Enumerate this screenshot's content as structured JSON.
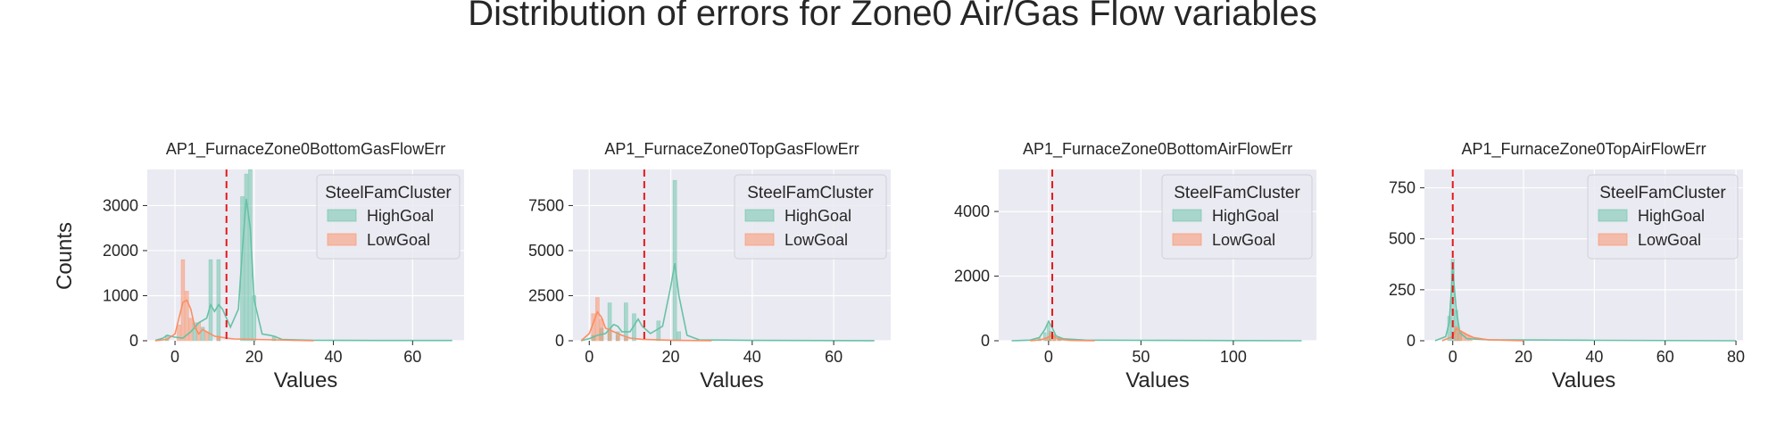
{
  "suptitle": "Distribution of errors for Zone0 Air/Gas Flow variables",
  "shared_ylabel": "Counts",
  "colors": {
    "axes_background": "#eaeaf2",
    "grid": "#ffffff",
    "HighGoal": "#66c2a5",
    "LowGoal": "#fc8d62",
    "threshold_line": "#e41a1c"
  },
  "chart_data": [
    {
      "type": "histogram",
      "title": "AP1_FurnaceZone0BottomGasFlowErr",
      "xlabel": "Values",
      "ylabel": "Counts",
      "xlim": [
        -7,
        73
      ],
      "ylim": [
        0,
        3800
      ],
      "xticks": [
        0,
        20,
        40,
        60
      ],
      "yticks": [
        0,
        1000,
        2000,
        3000
      ],
      "threshold": 13,
      "legend": {
        "title": "SteelFamCluster",
        "entries": [
          "HighGoal",
          "LowGoal"
        ],
        "position": "top-right"
      },
      "grid": true,
      "kde": true,
      "series": [
        {
          "name": "HighGoal",
          "bins": [
            {
              "x": -2,
              "y": 120
            },
            {
              "x": 5,
              "y": 400
            },
            {
              "x": 7,
              "y": 300
            },
            {
              "x": 9,
              "y": 1800
            },
            {
              "x": 11,
              "y": 1800
            },
            {
              "x": 17,
              "y": 3200
            },
            {
              "x": 18,
              "y": 3700
            },
            {
              "x": 19,
              "y": 3800
            },
            {
              "x": 20,
              "y": 1000
            },
            {
              "x": 25,
              "y": 100
            },
            {
              "x": 30,
              "y": 20
            }
          ]
        },
        {
          "name": "LowGoal",
          "bins": [
            {
              "x": 1,
              "y": 350
            },
            {
              "x": 2,
              "y": 1800
            },
            {
              "x": 3,
              "y": 1100
            },
            {
              "x": 4,
              "y": 500
            },
            {
              "x": 6,
              "y": 400
            },
            {
              "x": 8,
              "y": 200
            },
            {
              "x": 11,
              "y": 100
            }
          ]
        }
      ],
      "kde_curves": [
        {
          "name": "HighGoal",
          "points": [
            [
              -5,
              5
            ],
            [
              -3,
              60
            ],
            [
              -2,
              120
            ],
            [
              0,
              80
            ],
            [
              2,
              60
            ],
            [
              4,
              200
            ],
            [
              6,
              400
            ],
            [
              8,
              500
            ],
            [
              9,
              800
            ],
            [
              10,
              650
            ],
            [
              11,
              800
            ],
            [
              12,
              700
            ],
            [
              14,
              300
            ],
            [
              16,
              700
            ],
            [
              17,
              2000
            ],
            [
              18,
              3150
            ],
            [
              19,
              2500
            ],
            [
              20,
              900
            ],
            [
              22,
              150
            ],
            [
              24,
              120
            ],
            [
              25,
              100
            ],
            [
              27,
              30
            ],
            [
              35,
              10
            ],
            [
              50,
              5
            ],
            [
              70,
              5
            ]
          ]
        },
        {
          "name": "LowGoal",
          "points": [
            [
              -5,
              0
            ],
            [
              -2,
              30
            ],
            [
              0,
              150
            ],
            [
              1,
              500
            ],
            [
              2,
              850
            ],
            [
              3,
              900
            ],
            [
              4,
              700
            ],
            [
              5,
              300
            ],
            [
              6,
              150
            ],
            [
              7,
              250
            ],
            [
              8,
              200
            ],
            [
              10,
              100
            ],
            [
              13,
              60
            ],
            [
              15,
              40
            ],
            [
              20,
              30
            ],
            [
              30,
              10
            ],
            [
              35,
              0
            ]
          ]
        }
      ]
    },
    {
      "type": "histogram",
      "title": "AP1_FurnaceZone0TopGasFlowErr",
      "xlabel": "Values",
      "ylabel": "",
      "xlim": [
        -4,
        74
      ],
      "ylim": [
        0,
        9500
      ],
      "xticks": [
        0,
        20,
        40,
        60
      ],
      "yticks": [
        0,
        2500,
        5000,
        7500
      ],
      "threshold": 13.5,
      "legend": {
        "title": "SteelFamCluster",
        "entries": [
          "HighGoal",
          "LowGoal"
        ],
        "position": "top-right"
      },
      "grid": true,
      "kde": true,
      "series": [
        {
          "name": "HighGoal",
          "bins": [
            {
              "x": 1,
              "y": 300
            },
            {
              "x": 3,
              "y": 700
            },
            {
              "x": 5,
              "y": 2100
            },
            {
              "x": 7,
              "y": 500
            },
            {
              "x": 9,
              "y": 2100
            },
            {
              "x": 11,
              "y": 1500
            },
            {
              "x": 17,
              "y": 1100
            },
            {
              "x": 21,
              "y": 8900
            },
            {
              "x": 22,
              "y": 500
            },
            {
              "x": 30,
              "y": 20
            }
          ]
        },
        {
          "name": "LowGoal",
          "bins": [
            {
              "x": 1,
              "y": 1500
            },
            {
              "x": 2,
              "y": 2400
            },
            {
              "x": 3,
              "y": 1200
            },
            {
              "x": 5,
              "y": 600
            },
            {
              "x": 7,
              "y": 300
            },
            {
              "x": 9,
              "y": 150
            }
          ]
        }
      ],
      "kde_curves": [
        {
          "name": "HighGoal",
          "points": [
            [
              -2,
              0
            ],
            [
              0,
              120
            ],
            [
              2,
              300
            ],
            [
              4,
              400
            ],
            [
              6,
              900
            ],
            [
              7,
              800
            ],
            [
              8,
              500
            ],
            [
              10,
              500
            ],
            [
              12,
              1200
            ],
            [
              13,
              800
            ],
            [
              15,
              400
            ],
            [
              18,
              800
            ],
            [
              20,
              3000
            ],
            [
              21,
              4300
            ],
            [
              22,
              2500
            ],
            [
              24,
              300
            ],
            [
              27,
              50
            ],
            [
              40,
              20
            ],
            [
              70,
              5
            ]
          ]
        },
        {
          "name": "LowGoal",
          "points": [
            [
              -2,
              0
            ],
            [
              0,
              400
            ],
            [
              1,
              1000
            ],
            [
              2,
              1600
            ],
            [
              3,
              1300
            ],
            [
              4,
              700
            ],
            [
              6,
              500
            ],
            [
              8,
              300
            ],
            [
              10,
              150
            ],
            [
              13,
              80
            ],
            [
              20,
              30
            ],
            [
              30,
              0
            ]
          ]
        }
      ]
    },
    {
      "type": "histogram",
      "title": "AP1_FurnaceZone0BottomAirFlowErr",
      "xlabel": "Values",
      "ylabel": "",
      "xlim": [
        -27,
        145
      ],
      "ylim": [
        0,
        5300
      ],
      "xticks": [
        0,
        50,
        100
      ],
      "yticks": [
        0,
        2000,
        4000
      ],
      "threshold": 2,
      "legend": {
        "title": "SteelFamCluster",
        "entries": [
          "HighGoal",
          "LowGoal"
        ],
        "position": "top-right"
      },
      "grid": true,
      "kde": true,
      "series": [
        {
          "name": "HighGoal",
          "bins": [
            {
              "x": -5,
              "y": 80
            },
            {
              "x": -2,
              "y": 250
            },
            {
              "x": 0,
              "y": 500
            },
            {
              "x": 1,
              "y": 300
            },
            {
              "x": 3,
              "y": 200
            },
            {
              "x": 6,
              "y": 100
            }
          ]
        },
        {
          "name": "LowGoal",
          "bins": [
            {
              "x": -1,
              "y": 100
            },
            {
              "x": 1,
              "y": 250
            },
            {
              "x": 3,
              "y": 180
            },
            {
              "x": 5,
              "y": 80
            }
          ]
        }
      ],
      "kde_curves": [
        {
          "name": "HighGoal",
          "points": [
            [
              -20,
              0
            ],
            [
              -10,
              20
            ],
            [
              -5,
              100
            ],
            [
              -2,
              350
            ],
            [
              0,
              600
            ],
            [
              2,
              400
            ],
            [
              4,
              150
            ],
            [
              8,
              60
            ],
            [
              20,
              20
            ],
            [
              60,
              10
            ],
            [
              100,
              5
            ],
            [
              137,
              0
            ]
          ]
        },
        {
          "name": "LowGoal",
          "points": [
            [
              -10,
              0
            ],
            [
              -4,
              30
            ],
            [
              -1,
              90
            ],
            [
              1,
              150
            ],
            [
              3,
              120
            ],
            [
              6,
              40
            ],
            [
              12,
              10
            ],
            [
              25,
              0
            ]
          ]
        }
      ]
    },
    {
      "type": "histogram",
      "title": "AP1_FurnaceZone0TopAirFlowErr",
      "xlabel": "Values",
      "ylabel": "",
      "xlim": [
        -8,
        82
      ],
      "ylim": [
        0,
        840
      ],
      "xticks": [
        0,
        20,
        40,
        60,
        80
      ],
      "yticks": [
        0,
        250,
        500,
        750
      ],
      "threshold": 0,
      "legend": {
        "title": "SteelFamCluster",
        "entries": [
          "HighGoal",
          "LowGoal"
        ],
        "position": "top-right"
      },
      "grid": true,
      "kde": true,
      "series": [
        {
          "name": "HighGoal",
          "bins": [
            {
              "x": -1,
              "y": 120
            },
            {
              "x": 0,
              "y": 400
            },
            {
              "x": 1,
              "y": 150
            },
            {
              "x": 2,
              "y": 40
            }
          ]
        },
        {
          "name": "LowGoal",
          "bins": [
            {
              "x": 1,
              "y": 70
            },
            {
              "x": 2,
              "y": 50
            },
            {
              "x": 3,
              "y": 40
            },
            {
              "x": 4,
              "y": 30
            },
            {
              "x": 5,
              "y": 20
            }
          ]
        }
      ],
      "kde_curves": [
        {
          "name": "HighGoal",
          "points": [
            [
              -5,
              0
            ],
            [
              -2,
              20
            ],
            [
              -1,
              90
            ],
            [
              0,
              350
            ],
            [
              1,
              150
            ],
            [
              2,
              40
            ],
            [
              4,
              10
            ],
            [
              10,
              5
            ],
            [
              40,
              2
            ],
            [
              80,
              0
            ]
          ]
        },
        {
          "name": "LowGoal",
          "points": [
            [
              -3,
              0
            ],
            [
              0,
              20
            ],
            [
              1,
              60
            ],
            [
              2,
              50
            ],
            [
              4,
              30
            ],
            [
              6,
              15
            ],
            [
              10,
              5
            ],
            [
              20,
              0
            ]
          ]
        }
      ]
    }
  ]
}
